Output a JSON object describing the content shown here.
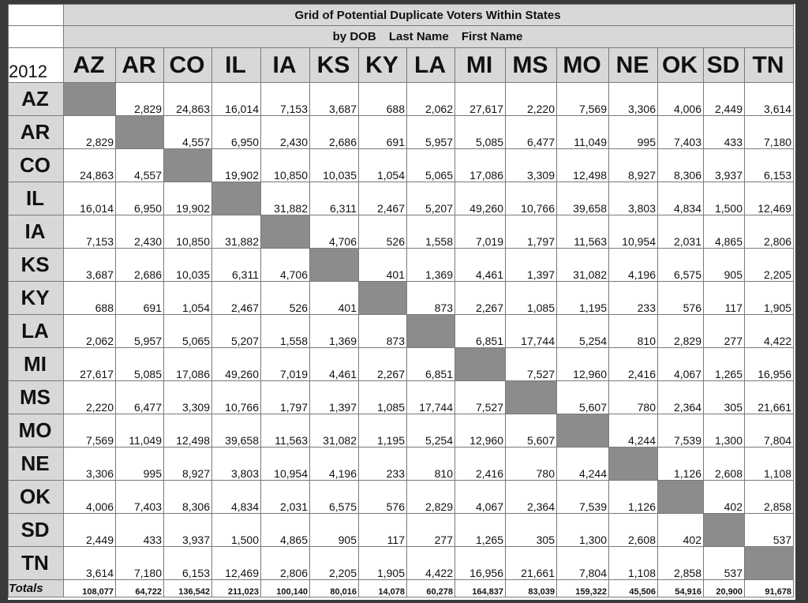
{
  "title_line1": "Grid of Potential Duplicate Voters Within States",
  "title_parts": [
    "by DOB",
    "Last Name",
    "First Name"
  ],
  "year": "2012",
  "totals_label": "Totals",
  "colors": {
    "header_bg": "#d8d8d8",
    "diagonal": "#8c8c8c",
    "frame": "#3a3a3a"
  },
  "chart_data": {
    "type": "table",
    "title": "Grid of Potential Duplicate Voters Within States",
    "subtitle": "by DOB   Last Name   First Name",
    "columns": [
      "AZ",
      "AR",
      "CO",
      "IL",
      "IA",
      "KS",
      "KY",
      "LA",
      "MI",
      "MS",
      "MO",
      "NE",
      "OK",
      "SD",
      "TN"
    ],
    "rows": [
      {
        "state": "AZ",
        "values": [
          "",
          "2,829",
          "24,863",
          "16,014",
          "7,153",
          "3,687",
          "688",
          "2,062",
          "27,617",
          "2,220",
          "7,569",
          "3,306",
          "4,006",
          "2,449",
          "3,614"
        ]
      },
      {
        "state": "AR",
        "values": [
          "2,829",
          "",
          "4,557",
          "6,950",
          "2,430",
          "2,686",
          "691",
          "5,957",
          "5,085",
          "6,477",
          "11,049",
          "995",
          "7,403",
          "433",
          "7,180"
        ]
      },
      {
        "state": "CO",
        "values": [
          "24,863",
          "4,557",
          "",
          "19,902",
          "10,850",
          "10,035",
          "1,054",
          "5,065",
          "17,086",
          "3,309",
          "12,498",
          "8,927",
          "8,306",
          "3,937",
          "6,153"
        ]
      },
      {
        "state": "IL",
        "values": [
          "16,014",
          "6,950",
          "19,902",
          "",
          "31,882",
          "6,311",
          "2,467",
          "5,207",
          "49,260",
          "10,766",
          "39,658",
          "3,803",
          "4,834",
          "1,500",
          "12,469"
        ]
      },
      {
        "state": "IA",
        "values": [
          "7,153",
          "2,430",
          "10,850",
          "31,882",
          "",
          "4,706",
          "526",
          "1,558",
          "7,019",
          "1,797",
          "11,563",
          "10,954",
          "2,031",
          "4,865",
          "2,806"
        ]
      },
      {
        "state": "KS",
        "values": [
          "3,687",
          "2,686",
          "10,035",
          "6,311",
          "4,706",
          "",
          "401",
          "1,369",
          "4,461",
          "1,397",
          "31,082",
          "4,196",
          "6,575",
          "905",
          "2,205"
        ]
      },
      {
        "state": "KY",
        "values": [
          "688",
          "691",
          "1,054",
          "2,467",
          "526",
          "401",
          "",
          "873",
          "2,267",
          "1,085",
          "1,195",
          "233",
          "576",
          "117",
          "1,905"
        ]
      },
      {
        "state": "LA",
        "values": [
          "2,062",
          "5,957",
          "5,065",
          "5,207",
          "1,558",
          "1,369",
          "873",
          "",
          "6,851",
          "17,744",
          "5,254",
          "810",
          "2,829",
          "277",
          "4,422"
        ]
      },
      {
        "state": "MI",
        "values": [
          "27,617",
          "5,085",
          "17,086",
          "49,260",
          "7,019",
          "4,461",
          "2,267",
          "6,851",
          "",
          "7,527",
          "12,960",
          "2,416",
          "4,067",
          "1,265",
          "16,956"
        ]
      },
      {
        "state": "MS",
        "values": [
          "2,220",
          "6,477",
          "3,309",
          "10,766",
          "1,797",
          "1,397",
          "1,085",
          "17,744",
          "7,527",
          "",
          "5,607",
          "780",
          "2,364",
          "305",
          "21,661"
        ]
      },
      {
        "state": "MO",
        "values": [
          "7,569",
          "11,049",
          "12,498",
          "39,658",
          "11,563",
          "31,082",
          "1,195",
          "5,254",
          "12,960",
          "5,607",
          "",
          "4,244",
          "7,539",
          "1,300",
          "7,804"
        ]
      },
      {
        "state": "NE",
        "values": [
          "3,306",
          "995",
          "8,927",
          "3,803",
          "10,954",
          "4,196",
          "233",
          "810",
          "2,416",
          "780",
          "4,244",
          "",
          "1,126",
          "2,608",
          "1,108"
        ]
      },
      {
        "state": "OK",
        "values": [
          "4,006",
          "7,403",
          "8,306",
          "4,834",
          "2,031",
          "6,575",
          "576",
          "2,829",
          "4,067",
          "2,364",
          "7,539",
          "1,126",
          "",
          "402",
          "2,858"
        ]
      },
      {
        "state": "SD",
        "values": [
          "2,449",
          "433",
          "3,937",
          "1,500",
          "4,865",
          "905",
          "117",
          "277",
          "1,265",
          "305",
          "1,300",
          "2,608",
          "402",
          "",
          "537"
        ]
      },
      {
        "state": "TN",
        "values": [
          "3,614",
          "7,180",
          "6,153",
          "12,469",
          "2,806",
          "2,205",
          "1,905",
          "4,422",
          "16,956",
          "21,661",
          "7,804",
          "1,108",
          "2,858",
          "537",
          ""
        ]
      }
    ],
    "totals": [
      "108,077",
      "64,722",
      "136,542",
      "211,023",
      "100,140",
      "80,016",
      "14,078",
      "60,278",
      "164,837",
      "83,039",
      "159,322",
      "45,506",
      "54,916",
      "20,900",
      "91,678"
    ]
  }
}
